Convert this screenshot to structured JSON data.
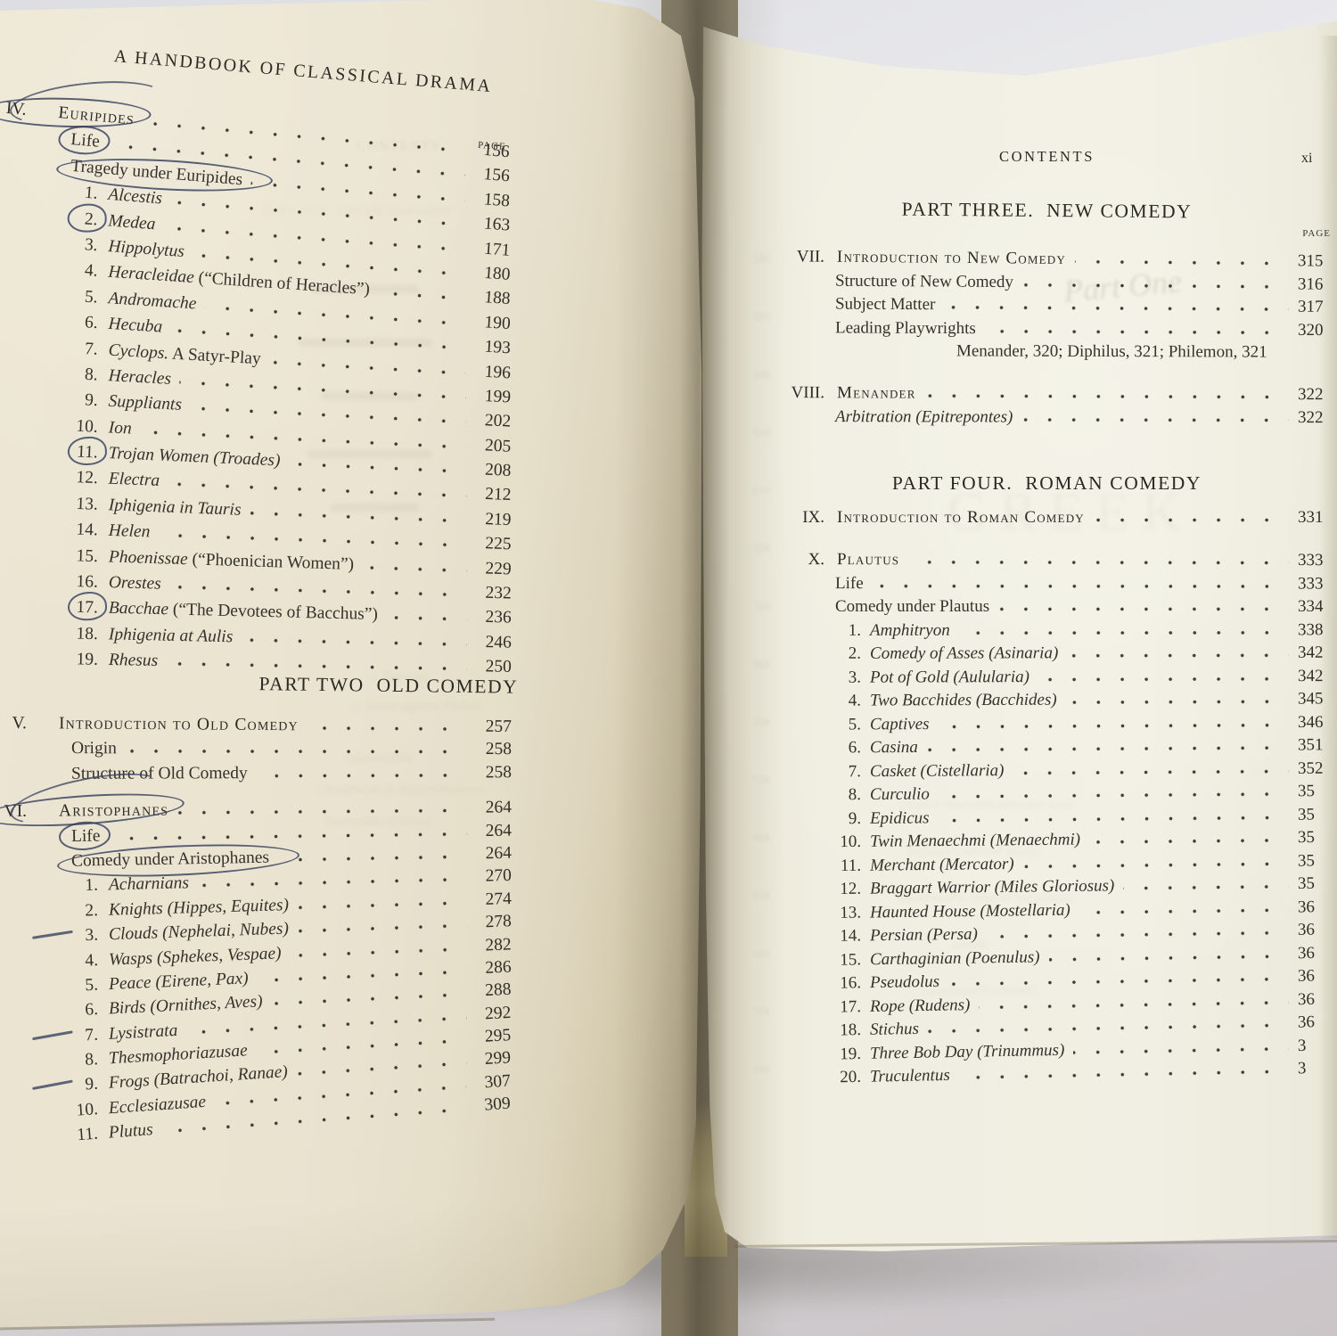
{
  "photo": {
    "background_color": "#d9d9dc",
    "left_page_color": "#eae3d0",
    "right_page_color": "#f0eee1",
    "ink_annotation_color": "#36405e"
  },
  "left_page": {
    "header": "A HANDBOOK OF CLASSICAL DRAMA",
    "page_label": "PAGE",
    "part_two_title": "PART TWO  OLD COMEDY",
    "euripides_rows": [
      {
        "t": "ch",
        "num": "IV.",
        "label": "Euripides",
        "page": "156",
        "mark": "circle2"
      },
      {
        "t": "sec",
        "label": "Life",
        "page": "156",
        "mark": "oval"
      },
      {
        "t": "sec",
        "label": "Tragedy under Euripides",
        "page": "158",
        "mark": "oval-wide"
      },
      {
        "t": "it",
        "num": "1.",
        "label": "Alcestis",
        "page": "163"
      },
      {
        "t": "it",
        "num": "2.",
        "label": "Medea",
        "page": "171",
        "mark": "ring"
      },
      {
        "t": "it",
        "num": "3.",
        "label": "Hippolytus",
        "page": "180"
      },
      {
        "t": "it",
        "num": "4.",
        "label": "Heracleidae",
        "sfx": " (“Children of Heracles”)",
        "page": "188"
      },
      {
        "t": "it",
        "num": "5.",
        "label": "Andromache",
        "page": "190"
      },
      {
        "t": "it",
        "num": "6.",
        "label": "Hecuba",
        "page": "193"
      },
      {
        "t": "it",
        "num": "7.",
        "label": "Cyclops.",
        "sfx": " A Satyr-Play",
        "page": "196"
      },
      {
        "t": "it",
        "num": "8.",
        "label": "Heracles",
        "page": "199"
      },
      {
        "t": "it",
        "num": "9.",
        "label": "Suppliants",
        "page": "202"
      },
      {
        "t": "it",
        "num": "10.",
        "label": "Ion",
        "page": "205"
      },
      {
        "t": "it",
        "num": "11.",
        "label": "Trojan Women (Troades)",
        "page": "208",
        "mark": "ring"
      },
      {
        "t": "it",
        "num": "12.",
        "label": "Electra",
        "page": "212"
      },
      {
        "t": "it",
        "num": "13.",
        "label": "Iphigenia in Tauris",
        "page": "219"
      },
      {
        "t": "it",
        "num": "14.",
        "label": "Helen",
        "page": "225"
      },
      {
        "t": "it",
        "num": "15.",
        "label": "Phoenissae",
        "sfx": " (“Phoenician Women”)",
        "page": "229"
      },
      {
        "t": "it",
        "num": "16.",
        "label": "Orestes",
        "page": "232"
      },
      {
        "t": "it",
        "num": "17.",
        "label": "Bacchae",
        "sfx": " (“The Devotees of Bacchus”)",
        "page": "236",
        "mark": "ring"
      },
      {
        "t": "it",
        "num": "18.",
        "label": "Iphigenia at Aulis",
        "page": "246"
      },
      {
        "t": "it",
        "num": "19.",
        "label": "Rhesus",
        "page": "250"
      }
    ],
    "part_two_rows": [
      {
        "t": "ch",
        "num": "V.",
        "label": "Introduction to Old Comedy",
        "page": "257"
      },
      {
        "t": "sec",
        "label": "Origin",
        "page": "258"
      },
      {
        "t": "sec",
        "label": "Structure of Old Comedy",
        "page": "258"
      },
      {
        "t": "ch",
        "num": "VI.",
        "label": "Aristophanes",
        "page": "264",
        "mark": "circle2",
        "gap": 14
      },
      {
        "t": "sec",
        "label": "Life",
        "page": "264",
        "mark": "oval"
      },
      {
        "t": "sec",
        "label": "Comedy under Aristophanes",
        "page": "264",
        "mark": "oval-wide"
      },
      {
        "t": "it",
        "num": "1.",
        "label": "Acharnians",
        "page": "270"
      },
      {
        "t": "it",
        "num": "2.",
        "label": "Knights (Hippes, Equites)",
        "page": "274"
      },
      {
        "t": "it",
        "num": "3.",
        "label": "Clouds (Nephelai, Nubes)",
        "page": "278",
        "mark": "dash"
      },
      {
        "t": "it",
        "num": "4.",
        "label": "Wasps (Sphekes, Vespae)",
        "page": "282"
      },
      {
        "t": "it",
        "num": "5.",
        "label": "Peace (Eirene, Pax)",
        "page": "286"
      },
      {
        "t": "it",
        "num": "6.",
        "label": "Birds (Ornithes, Aves)",
        "page": "288"
      },
      {
        "t": "it",
        "num": "7.",
        "label": "Lysistrata",
        "page": "292",
        "mark": "dash"
      },
      {
        "t": "it",
        "num": "8.",
        "label": "Thesmophoriazusae",
        "page": "295"
      },
      {
        "t": "it",
        "num": "9.",
        "label": "Frogs (Batrachoi, Ranae)",
        "page": "299",
        "mark": "dash"
      },
      {
        "t": "it",
        "num": "10.",
        "label": "Ecclesiazusae",
        "page": "307"
      },
      {
        "t": "it",
        "num": "11.",
        "label": "Plutus",
        "page": "309"
      }
    ]
  },
  "right_page": {
    "header": "CONTENTS",
    "folio": "xi",
    "page_label": "PAGE",
    "part_three_title": "PART THREE.  NEW COMEDY",
    "part_four_title": "PART FOUR.  ROMAN COMEDY",
    "new_comedy_rows": [
      {
        "t": "ch",
        "num": "VII.",
        "label": "Introduction to New Comedy",
        "page": "315"
      },
      {
        "t": "sec",
        "label": "Structure of New Comedy",
        "page": "316"
      },
      {
        "t": "sec",
        "label": "Subject Matter",
        "page": "317"
      },
      {
        "t": "sec",
        "label": "Leading Playwrights",
        "page": "320"
      },
      {
        "t": "note",
        "label": "Menander, 320; Diphilus, 321; Philemon, 321"
      }
    ],
    "menander_rows": [
      {
        "t": "ch",
        "num": "VIII.",
        "label": "Menander",
        "page": "322"
      },
      {
        "t": "iti",
        "label": "Arbitration (Epitrepontes)",
        "page": "322"
      }
    ],
    "roman_intro_rows": [
      {
        "t": "ch",
        "num": "IX.",
        "label": "Introduction to Roman Comedy",
        "page": "331"
      }
    ],
    "plautus_rows": [
      {
        "t": "ch",
        "num": "X.",
        "label": "Plautus",
        "page": "333"
      },
      {
        "t": "sec",
        "label": "Life",
        "page": "333"
      },
      {
        "t": "sec",
        "label": "Comedy under Plautus",
        "page": "334"
      },
      {
        "t": "it",
        "num": "1.",
        "label": "Amphitryon",
        "page": "338"
      },
      {
        "t": "it",
        "num": "2.",
        "label": "Comedy of Asses (Asinaria)",
        "page": "342"
      },
      {
        "t": "it",
        "num": "3.",
        "label": "Pot of Gold (Aulularia)",
        "page": "342"
      },
      {
        "t": "it",
        "num": "4.",
        "label": "Two Bacchides (Bacchides)",
        "page": "345"
      },
      {
        "t": "it",
        "num": "5.",
        "label": "Captives",
        "page": "346"
      },
      {
        "t": "it",
        "num": "6.",
        "label": "Casina",
        "page": "351"
      },
      {
        "t": "it",
        "num": "7.",
        "label": "Casket (Cistellaria)",
        "page": "352"
      },
      {
        "t": "it",
        "num": "8.",
        "label": "Curculio",
        "page": "35"
      },
      {
        "t": "it",
        "num": "9.",
        "label": "Epidicus",
        "page": "35"
      },
      {
        "t": "it",
        "num": "10.",
        "label": "Twin Menaechmi (Menaechmi)",
        "page": "35"
      },
      {
        "t": "it",
        "num": "11.",
        "label": "Merchant (Mercator)",
        "page": "35"
      },
      {
        "t": "it",
        "num": "12.",
        "label": "Braggart Warrior (Miles Gloriosus)",
        "page": "35"
      },
      {
        "t": "it",
        "num": "13.",
        "label": "Haunted House (Mostellaria)",
        "page": "36"
      },
      {
        "t": "it",
        "num": "14.",
        "label": "Persian (Persa)",
        "page": "36"
      },
      {
        "t": "it",
        "num": "15.",
        "label": "Carthaginian (Poenulus)",
        "page": "36"
      },
      {
        "t": "it",
        "num": "16.",
        "label": "Pseudolus",
        "page": "36"
      },
      {
        "t": "it",
        "num": "17.",
        "label": "Rope (Rudens)",
        "page": "36"
      },
      {
        "t": "it",
        "num": "18.",
        "label": "Stichus",
        "page": "36"
      },
      {
        "t": "it",
        "num": "19.",
        "label": "Three Bob Day (Trinummus)",
        "page": "3"
      },
      {
        "t": "it",
        "num": "20.",
        "label": "Truculentus",
        "page": "3"
      }
    ]
  },
  "bleed_through": {
    "left_contents": "CONTENTS",
    "left_part_one": "PART ONE. GREEK TRAGEDY",
    "left_lines": [
      "2. Persians",
      "3. Seven against Thebes",
      "Agamemnon",
      "Choephoroe (Libation-Bearers)",
      "Eumenides (Furies)"
    ],
    "right_script": "Part One",
    "right_large": "GREEK",
    "right_lines": [
      "Mad Hercules (Hercules Furens)",
      "Trojan Women (Troades)",
      "Phoenician Women (Phoenissae)",
      "Medea",
      "Phaedra (Hippolytus)"
    ],
    "right_numbers": [
      "382",
      "392",
      "401",
      "410",
      "413",
      "415",
      "417",
      "420",
      "425",
      "427",
      "430",
      "432",
      "434",
      "437",
      "441"
    ]
  }
}
